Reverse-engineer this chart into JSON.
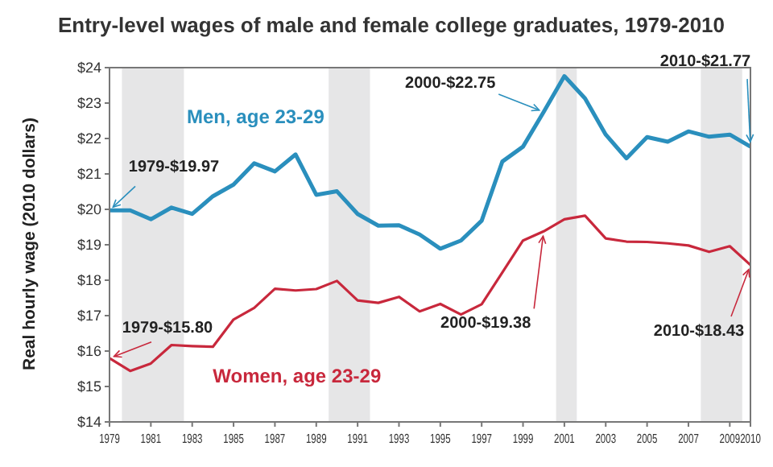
{
  "chart_data": {
    "type": "line",
    "title": "Entry-level wages of male and female college graduates, 1979-2010",
    "ylabel": "Real hourly wage (2010 dollars)",
    "x": [
      1979,
      1980,
      1981,
      1982,
      1983,
      1984,
      1985,
      1986,
      1987,
      1988,
      1989,
      1990,
      1991,
      1992,
      1993,
      1994,
      1995,
      1996,
      1997,
      1998,
      1999,
      2000,
      2001,
      2002,
      2003,
      2004,
      2005,
      2006,
      2007,
      2008,
      2009,
      2010
    ],
    "series": [
      {
        "name": "Men, age 23-29",
        "color": "#2a8fbd",
        "values": [
          19.97,
          19.97,
          19.72,
          20.05,
          19.87,
          20.37,
          20.7,
          21.3,
          21.07,
          21.55,
          20.41,
          20.51,
          19.87,
          19.54,
          19.55,
          19.29,
          18.89,
          19.12,
          19.68,
          21.35,
          21.77,
          22.75,
          23.76,
          23.13,
          22.11,
          21.44,
          22.04,
          21.91,
          22.2,
          22.05,
          22.11,
          21.77
        ]
      },
      {
        "name": "Women, age 23-29",
        "color": "#c8283c",
        "values": [
          15.8,
          15.44,
          15.65,
          16.17,
          16.14,
          16.12,
          16.89,
          17.22,
          17.76,
          17.71,
          17.75,
          17.98,
          17.43,
          17.36,
          17.53,
          17.12,
          17.33,
          17.03,
          17.32,
          18.22,
          19.12,
          19.38,
          19.72,
          19.82,
          19.18,
          19.09,
          19.08,
          19.04,
          18.98,
          18.8,
          18.96,
          18.43
        ]
      }
    ],
    "xlim": [
      1979,
      2010
    ],
    "xticks": [
      1979,
      1981,
      1983,
      1985,
      1987,
      1989,
      1991,
      1993,
      1995,
      1997,
      1999,
      2001,
      2003,
      2005,
      2007,
      2009,
      2010
    ],
    "ylim": [
      14,
      24
    ],
    "yticks": [
      {
        "value": 14,
        "label": "$14"
      },
      {
        "value": 15,
        "label": "$15"
      },
      {
        "value": 16,
        "label": "$16"
      },
      {
        "value": 17,
        "label": "$17"
      },
      {
        "value": 18,
        "label": "$18"
      },
      {
        "value": 19,
        "label": "$19"
      },
      {
        "value": 20,
        "label": "$20"
      },
      {
        "value": 21,
        "label": "$21"
      },
      {
        "value": 22,
        "label": "$22"
      },
      {
        "value": 23,
        "label": "$23"
      },
      {
        "value": 24,
        "label": "$24"
      }
    ],
    "bands": [
      {
        "axis": "x",
        "from": 1979.6,
        "to": 1982.6,
        "color": "#e6e6e7"
      },
      {
        "axis": "x",
        "from": 1989.6,
        "to": 1991.6,
        "color": "#e6e6e7"
      },
      {
        "axis": "x",
        "from": 2000.6,
        "to": 2001.6,
        "color": "#e6e6e7"
      },
      {
        "axis": "x",
        "from": 2007.6,
        "to": 2009.6,
        "color": "#e6e6e7"
      }
    ],
    "annotations": [
      {
        "text": "1979-$19.97",
        "x": 1979,
        "y": 19.97
      },
      {
        "text": "2000-$22.75",
        "x": 2000,
        "y": 22.75
      },
      {
        "text": "2010-$21.77",
        "x": 2010,
        "y": 21.77
      },
      {
        "text": "1979-$15.80",
        "x": 1979,
        "y": 15.8
      },
      {
        "text": "2000-$19.38",
        "x": 2000,
        "y": 19.38
      },
      {
        "text": "2010-$18.43",
        "x": 2010,
        "y": 18.43
      }
    ],
    "grid": false,
    "marker": "none",
    "line_style": "solid"
  }
}
